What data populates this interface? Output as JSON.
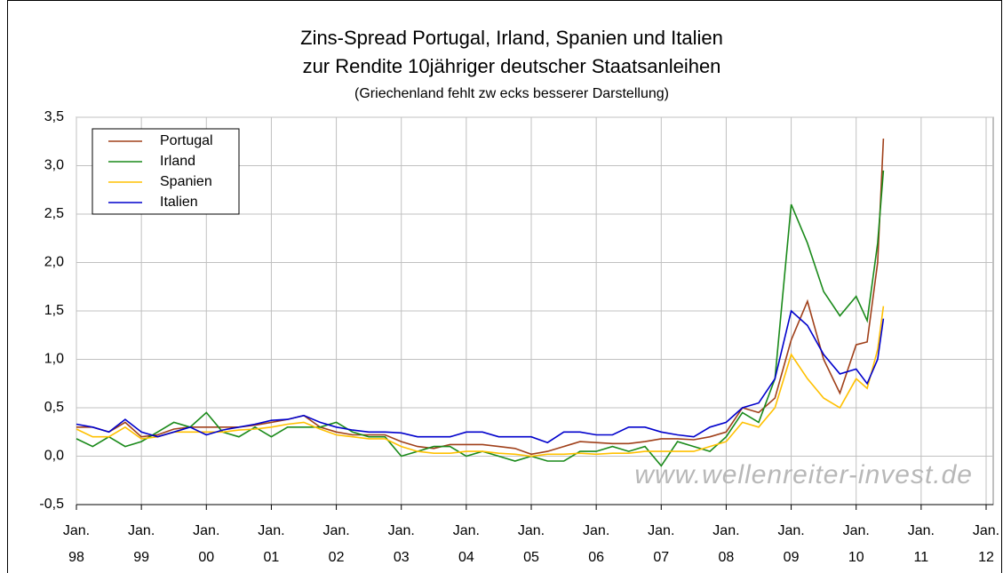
{
  "chart_data": {
    "type": "line",
    "title": "Zins-Spread Portugal, Irland, Spanien und Italien",
    "subtitle": "zur Rendite 10jähriger deutscher Staatsanleihen",
    "note": "(Griechenland fehlt zw ecks besserer Darstellung)",
    "watermark": "www.wellenreiter-invest.de",
    "x": [
      1998,
      1998.25,
      1998.5,
      1998.75,
      1999,
      1999.25,
      1999.5,
      1999.75,
      2000,
      2000.25,
      2000.5,
      2000.75,
      2001,
      2001.25,
      2001.5,
      2001.75,
      2002,
      2002.25,
      2002.5,
      2002.75,
      2003,
      2003.25,
      2003.5,
      2003.75,
      2004,
      2004.25,
      2004.5,
      2004.75,
      2005,
      2005.25,
      2005.5,
      2005.75,
      2006,
      2006.25,
      2006.5,
      2006.75,
      2007,
      2007.25,
      2007.5,
      2007.75,
      2008,
      2008.25,
      2008.5,
      2008.75,
      2009,
      2009.25,
      2009.5,
      2009.75,
      2010,
      2010.17,
      2010.33,
      2010.42
    ],
    "series": [
      {
        "name": "Portugal",
        "color": "#a0401a",
        "values": [
          0.3,
          0.3,
          0.25,
          0.35,
          0.2,
          0.22,
          0.28,
          0.3,
          0.3,
          0.3,
          0.3,
          0.32,
          0.35,
          0.38,
          0.42,
          0.3,
          0.25,
          0.22,
          0.22,
          0.22,
          0.15,
          0.1,
          0.08,
          0.12,
          0.12,
          0.12,
          0.1,
          0.08,
          0.02,
          0.05,
          0.1,
          0.15,
          0.14,
          0.13,
          0.13,
          0.15,
          0.18,
          0.18,
          0.17,
          0.2,
          0.25,
          0.5,
          0.45,
          0.6,
          1.2,
          1.6,
          1.0,
          0.65,
          1.15,
          1.18,
          2.0,
          3.28
        ]
      },
      {
        "name": "Irland",
        "color": "#1a8a1a",
        "values": [
          0.18,
          0.1,
          0.2,
          0.1,
          0.15,
          0.25,
          0.35,
          0.3,
          0.45,
          0.25,
          0.2,
          0.3,
          0.2,
          0.3,
          0.3,
          0.3,
          0.35,
          0.25,
          0.2,
          0.2,
          0.0,
          0.05,
          0.1,
          0.1,
          0.0,
          0.05,
          0.0,
          -0.05,
          0.0,
          -0.05,
          -0.05,
          0.05,
          0.05,
          0.1,
          0.05,
          0.1,
          -0.1,
          0.15,
          0.1,
          0.05,
          0.2,
          0.45,
          0.35,
          0.8,
          2.6,
          2.2,
          1.7,
          1.45,
          1.65,
          1.4,
          2.2,
          2.95
        ]
      },
      {
        "name": "Spanien",
        "color": "#ffc000",
        "values": [
          0.28,
          0.2,
          0.2,
          0.3,
          0.18,
          0.2,
          0.25,
          0.25,
          0.25,
          0.25,
          0.27,
          0.28,
          0.3,
          0.33,
          0.35,
          0.28,
          0.22,
          0.2,
          0.18,
          0.18,
          0.1,
          0.05,
          0.03,
          0.03,
          0.05,
          0.05,
          0.03,
          0.02,
          0.0,
          0.02,
          0.02,
          0.03,
          0.02,
          0.03,
          0.03,
          0.05,
          0.05,
          0.05,
          0.05,
          0.1,
          0.15,
          0.35,
          0.3,
          0.5,
          1.05,
          0.8,
          0.6,
          0.5,
          0.8,
          0.7,
          1.1,
          1.55
        ]
      },
      {
        "name": "Italien",
        "color": "#0000cc",
        "values": [
          0.33,
          0.3,
          0.25,
          0.38,
          0.25,
          0.2,
          0.25,
          0.3,
          0.22,
          0.27,
          0.3,
          0.33,
          0.37,
          0.38,
          0.42,
          0.35,
          0.3,
          0.27,
          0.25,
          0.25,
          0.24,
          0.2,
          0.2,
          0.2,
          0.25,
          0.25,
          0.2,
          0.2,
          0.2,
          0.14,
          0.25,
          0.25,
          0.22,
          0.22,
          0.3,
          0.3,
          0.25,
          0.22,
          0.2,
          0.3,
          0.35,
          0.5,
          0.55,
          0.8,
          1.5,
          1.35,
          1.05,
          0.85,
          0.9,
          0.75,
          1.0,
          1.42
        ]
      }
    ],
    "xlim": [
      1998,
      2012
    ],
    "xticks": [
      {
        "value": 1998,
        "label": "Jan.\n98"
      },
      {
        "value": 1999,
        "label": "Jan.\n99"
      },
      {
        "value": 2000,
        "label": "Jan.\n00"
      },
      {
        "value": 2001,
        "label": "Jan.\n01"
      },
      {
        "value": 2002,
        "label": "Jan.\n02"
      },
      {
        "value": 2003,
        "label": "Jan.\n03"
      },
      {
        "value": 2004,
        "label": "Jan.\n04"
      },
      {
        "value": 2005,
        "label": "Jan.\n05"
      },
      {
        "value": 2006,
        "label": "Jan.\n06"
      },
      {
        "value": 2007,
        "label": "Jan.\n07"
      },
      {
        "value": 2008,
        "label": "Jan.\n08"
      },
      {
        "value": 2009,
        "label": "Jan.\n09"
      },
      {
        "value": 2010,
        "label": "Jan.\n10"
      },
      {
        "value": 2011,
        "label": "Jan.\n11"
      },
      {
        "value": 2012,
        "label": "Jan.\n12"
      }
    ],
    "ylim": [
      -0.5,
      3.5
    ],
    "yticks": [
      {
        "value": -0.5,
        "label": "-0,5"
      },
      {
        "value": 0,
        "label": "0,0"
      },
      {
        "value": 0.5,
        "label": "0,5"
      },
      {
        "value": 1,
        "label": "1,0"
      },
      {
        "value": 1.5,
        "label": "1,5"
      },
      {
        "value": 2,
        "label": "2,0"
      },
      {
        "value": 2.5,
        "label": "2,5"
      },
      {
        "value": 3,
        "label": "3,0"
      },
      {
        "value": 3.5,
        "label": "3,5"
      }
    ],
    "grid": true,
    "legend": "upper left"
  }
}
